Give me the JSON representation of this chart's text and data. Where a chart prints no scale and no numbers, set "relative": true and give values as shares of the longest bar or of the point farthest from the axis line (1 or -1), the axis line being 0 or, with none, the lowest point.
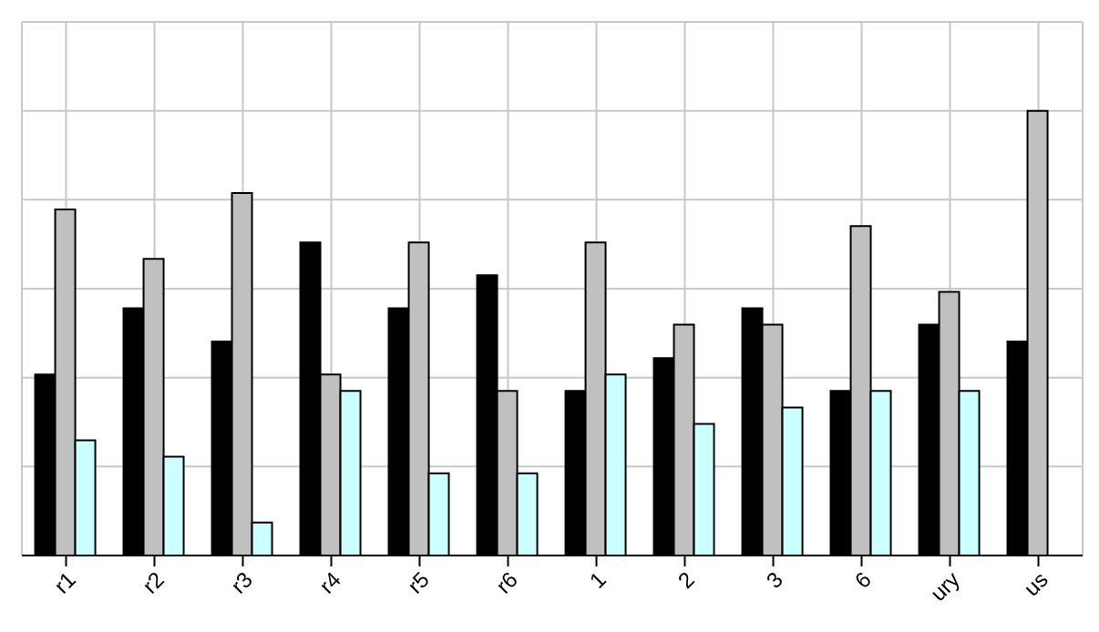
{
  "chart_data": {
    "type": "bar",
    "relative": true,
    "grid": true,
    "categories": [
      "r1",
      "r2",
      "r3",
      "r4",
      "r5",
      "r6",
      "1",
      "2",
      "3",
      "6",
      "ury",
      "us"
    ],
    "series": [
      {
        "color": "#000000",
        "values": [
          0.407,
          0.556,
          0.481,
          0.704,
          0.556,
          0.63,
          0.37,
          0.444,
          0.556,
          0.37,
          0.519,
          0.481
        ]
      },
      {
        "color": "#c0c0c0",
        "values": [
          0.778,
          0.667,
          0.815,
          0.407,
          0.704,
          0.37,
          0.704,
          0.519,
          0.519,
          0.741,
          0.593,
          1
        ]
      },
      {
        "color": "#ccffff",
        "values": [
          0.259,
          0.222,
          0.074,
          0.37,
          0.185,
          0.185,
          0.407,
          0.296,
          0.333,
          0.37,
          0.37,
          null
        ]
      }
    ]
  }
}
